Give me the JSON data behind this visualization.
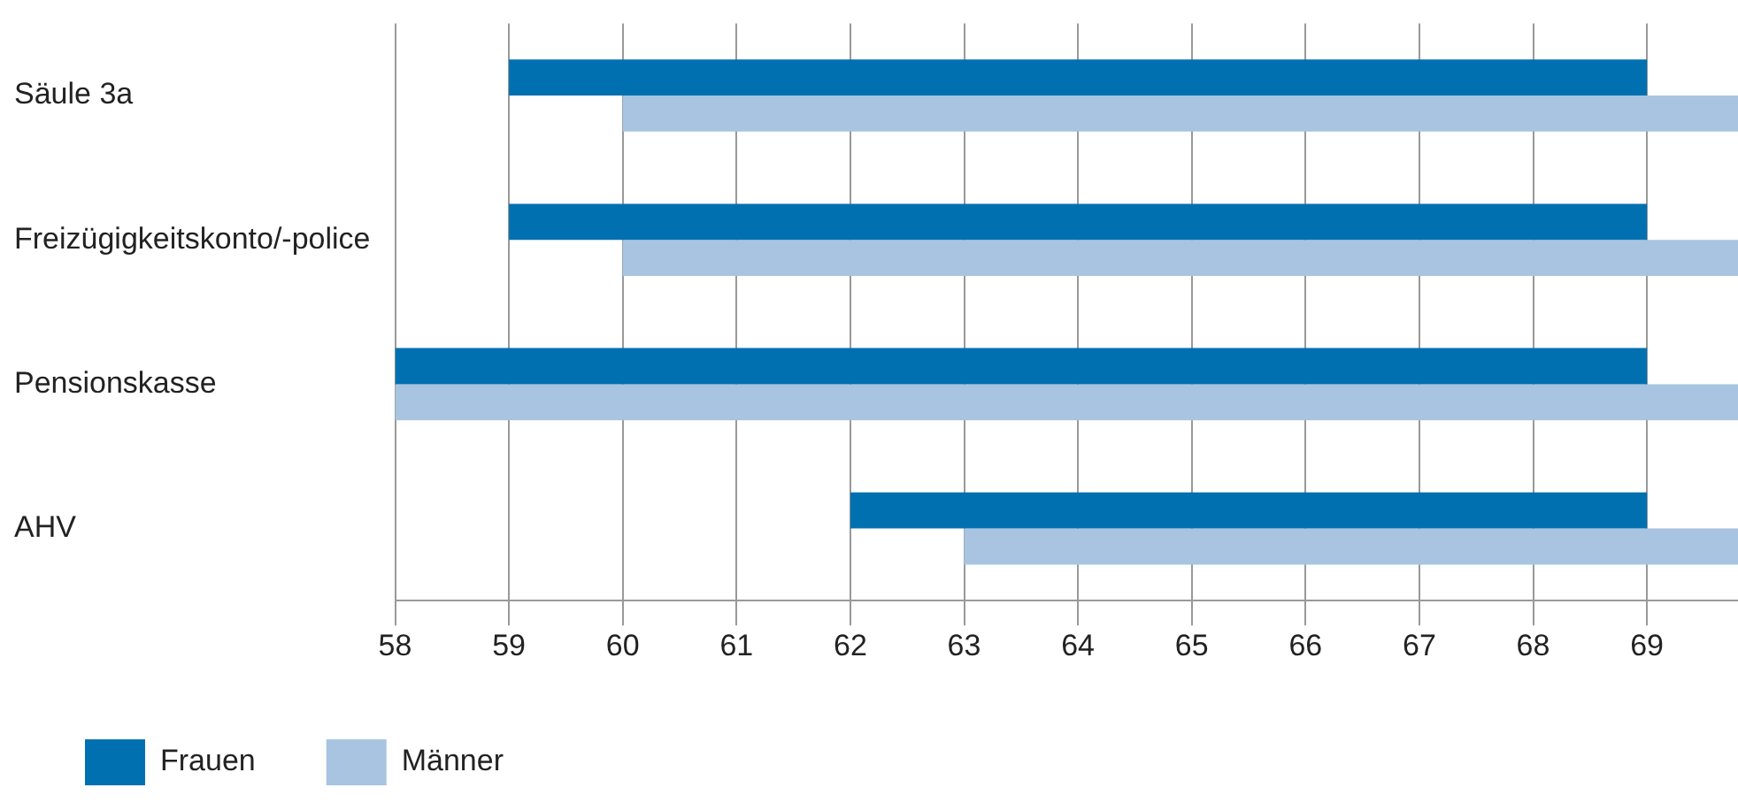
{
  "chart_data": {
    "type": "bar",
    "orientation": "horizontal",
    "categories": [
      "Säule 3a",
      "Freizügigkeitskonto/-police",
      "Pensionskasse",
      "AHV"
    ],
    "series": [
      {
        "name": "Frauen",
        "color": "#0070b0",
        "base": [
          59,
          59,
          58,
          62
        ],
        "values": [
          10,
          10,
          11,
          7
        ]
      },
      {
        "name": "Männer",
        "color": "#a8c4e0",
        "base": [
          60,
          60,
          58,
          63
        ],
        "values": [
          9.8,
          9.8,
          11.8,
          6.8
        ]
      }
    ],
    "xlim": [
      58,
      69.8
    ],
    "xticks": [
      58,
      59,
      60,
      61,
      62,
      63,
      64,
      65,
      66,
      67,
      68,
      69
    ],
    "grid": "x",
    "legend": "bottom left"
  }
}
